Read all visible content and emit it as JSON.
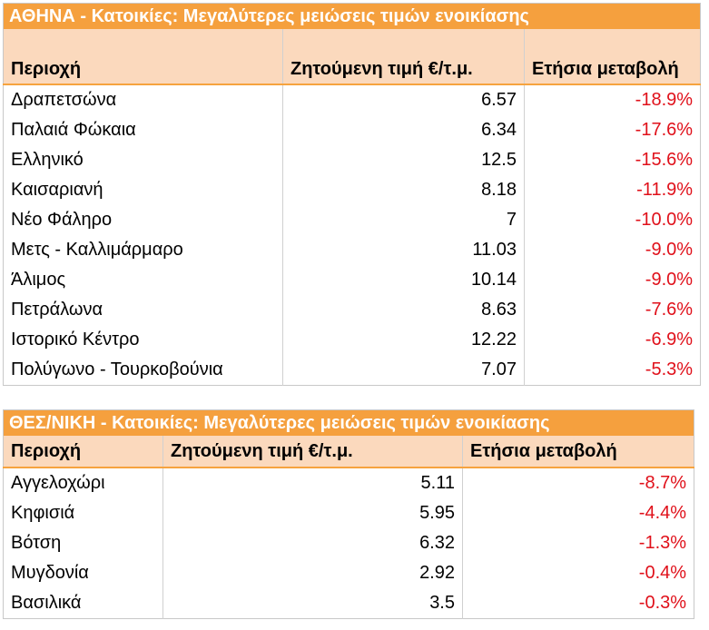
{
  "athens": {
    "title": "ΑΘΗΝΑ - Κατοικίες: Μεγαλύτερες μειώσεις τιμών ενοικίασης",
    "headers": [
      "Περιοχή",
      "Ζητούμενη τιμή €/τ.μ.",
      "Ετήσια μεταβολή"
    ],
    "rows": [
      {
        "area": "Δραπετσώνα",
        "price": "6.57",
        "change": "-18.9%"
      },
      {
        "area": "Παλαιά Φώκαια",
        "price": "6.34",
        "change": "-17.6%"
      },
      {
        "area": "Ελληνικό",
        "price": "12.5",
        "change": "-15.6%"
      },
      {
        "area": "Καισαριανή",
        "price": "8.18",
        "change": "-11.9%"
      },
      {
        "area": "Νέο Φάληρο",
        "price": "7",
        "change": "-10.0%"
      },
      {
        "area": "Μετς - Καλλιμάρμαρο",
        "price": "11.03",
        "change": "-9.0%"
      },
      {
        "area": "Άλιμος",
        "price": "10.14",
        "change": "-9.0%"
      },
      {
        "area": "Πετράλωνα",
        "price": "8.63",
        "change": "-7.6%"
      },
      {
        "area": "Ιστορικό Κέντρο",
        "price": "12.22",
        "change": "-6.9%"
      },
      {
        "area": "Πολύγωνο - Τουρκοβούνια",
        "price": "7.07",
        "change": "-5.3%"
      }
    ]
  },
  "thessaloniki": {
    "title": "ΘΕΣ/ΝΙΚΗ - Κατοικίες: Μεγαλύτερες μειώσεις τιμών ενοικίασης",
    "headers": [
      "Περιοχή",
      "Ζητούμενη τιμή €/τ.μ.",
      "Ετήσια μεταβολή"
    ],
    "rows": [
      {
        "area": "Αγγελοχώρι",
        "price": "5.11",
        "change": "-8.7%"
      },
      {
        "area": "Κηφισιά",
        "price": "5.95",
        "change": "-4.4%"
      },
      {
        "area": "Βότση",
        "price": "6.32",
        "change": "-1.3%"
      },
      {
        "area": "Μυγδονία",
        "price": "2.92",
        "change": "-0.4%"
      },
      {
        "area": "Βασιλικά",
        "price": "3.5",
        "change": "-0.3%"
      }
    ]
  },
  "colors": {
    "title_bar": "#f5a03e",
    "header_bg": "#fbd9bd",
    "negative_change": "#e0101a"
  }
}
